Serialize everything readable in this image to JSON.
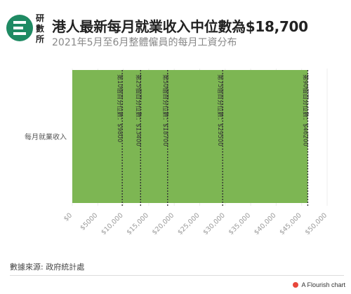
{
  "header": {
    "logo_text": "研數所",
    "title": "港人最新每月就業收入中位數為$18,700",
    "subtitle": "2021年5月至6月整體僱員的每月工資分布"
  },
  "chart_data": {
    "type": "bar",
    "orientation": "horizontal",
    "categories": [
      "每月就業收入"
    ],
    "values": [
      46200
    ],
    "xlim": [
      0,
      50000
    ],
    "xticks": [
      0,
      5000,
      10000,
      15000,
      20000,
      25000,
      30000,
      35000,
      40000,
      45000,
      50000
    ],
    "xtick_labels": [
      "$0",
      "$5000",
      "$10,000",
      "$15,000",
      "$20,000",
      "$25,000",
      "$30,000",
      "$35,000",
      "$40,000",
      "$45,000",
      "$50,000"
    ],
    "bar_color": "#7db653",
    "grid": true,
    "annotations": [
      {
        "x": 9800,
        "label": "第10個百分位數：$9800"
      },
      {
        "x": 13400,
        "label": "第25個百分位數：$13400"
      },
      {
        "x": 18700,
        "label": "第50個百分位數：$18700"
      },
      {
        "x": 29500,
        "label": "第75個百分位數：$29500"
      },
      {
        "x": 46200,
        "label": "第90個百分位數：$46200"
      }
    ]
  },
  "footer": {
    "source": "數據來源: 政府統計處",
    "credit": "A Flourish chart"
  }
}
